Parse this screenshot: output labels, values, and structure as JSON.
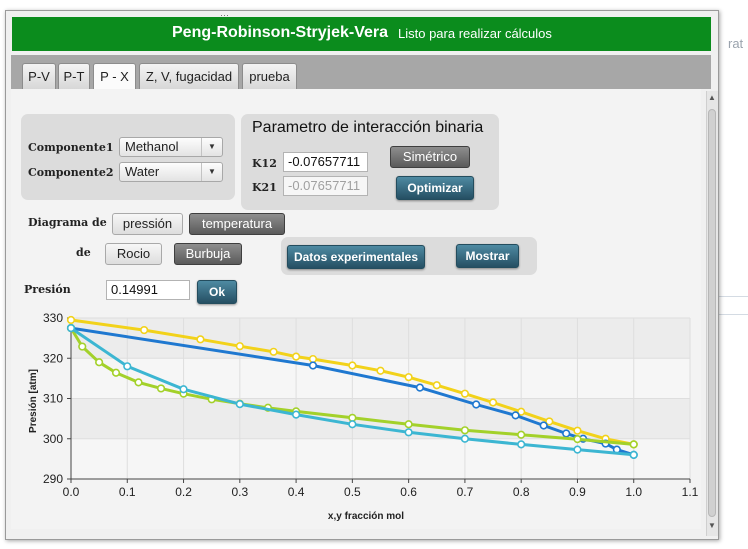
{
  "background": {
    "fragment": "rat"
  },
  "window": {
    "title": "Peng-Robinson-Stryjek-Vera",
    "status": "Listo para realizar cálculos",
    "accent": "#0b8c1d"
  },
  "tabs": [
    {
      "label": "P-V",
      "active": false
    },
    {
      "label": "P-T",
      "active": false
    },
    {
      "label": "P - X",
      "active": true
    },
    {
      "label": "Z, V, fugacidad",
      "active": false
    },
    {
      "label": "prueba",
      "active": false
    }
  ],
  "components": {
    "label1": "Componente1",
    "value1": "Methanol",
    "label2": "Componente2",
    "value2": "Water"
  },
  "binary": {
    "title": "Parametro de interacción binaria",
    "k12_label": "K12",
    "k12_value": "-0.07657711",
    "k21_label": "K21",
    "k21_value": "-0.07657711",
    "symmetric_label": "Simétrico",
    "optimize_label": "Optimizar"
  },
  "diagram": {
    "label_de": "Diagrama de",
    "pressure_label": "pressión",
    "temperature_label": "temperatura",
    "label_de2": "de",
    "dew_label": "Rocio",
    "bubble_label": "Burbuja",
    "experimental_label": "Datos experimentales",
    "show_label": "Mostrar"
  },
  "pressure": {
    "label": "Presión",
    "value": "0.14991",
    "ok_label": "Ok"
  },
  "chart_data": {
    "type": "line",
    "title": "",
    "xlabel": "x,y fracción mol",
    "ylabel": "Presión [atm]",
    "xlim": [
      0.0,
      1.1
    ],
    "ylim": [
      290,
      330
    ],
    "xticks": [
      "0.0",
      "0.1",
      "0.2",
      "0.3",
      "0.4",
      "0.5",
      "0.6",
      "0.7",
      "0.8",
      "0.9",
      "1.0",
      "1.1"
    ],
    "yticks": [
      "290",
      "300",
      "310",
      "320",
      "330"
    ],
    "grid": true,
    "series": [
      {
        "color": "#f2d21a",
        "marker": true,
        "x": [
          0.0,
          0.13,
          0.23,
          0.3,
          0.36,
          0.4,
          0.43,
          0.5,
          0.55,
          0.6,
          0.65,
          0.7,
          0.75,
          0.8,
          0.85,
          0.9,
          0.95,
          1.0
        ],
        "y": [
          329.5,
          327.0,
          324.7,
          323.0,
          321.6,
          320.4,
          319.8,
          318.2,
          316.9,
          315.3,
          313.3,
          311.2,
          309.0,
          306.7,
          304.3,
          302.0,
          300.0,
          298.6
        ]
      },
      {
        "color": "#1f78d0",
        "marker": true,
        "x": [
          0.0,
          0.43,
          0.62,
          0.72,
          0.79,
          0.84,
          0.88,
          0.91,
          0.95,
          0.97,
          1.0
        ],
        "y": [
          327.5,
          318.2,
          312.7,
          308.5,
          305.8,
          303.3,
          301.3,
          300.0,
          298.8,
          297.3,
          296.0
        ]
      },
      {
        "color": "#a3d12a",
        "marker": true,
        "x": [
          0.0,
          0.02,
          0.05,
          0.08,
          0.12,
          0.16,
          0.2,
          0.25,
          0.3,
          0.35,
          0.4,
          0.5,
          0.6,
          0.7,
          0.8,
          0.9,
          1.0
        ],
        "y": [
          327.5,
          322.9,
          319.0,
          316.4,
          314.0,
          312.5,
          311.2,
          309.8,
          308.7,
          307.7,
          306.8,
          305.2,
          303.6,
          302.1,
          301.0,
          299.9,
          298.6
        ]
      },
      {
        "color": "#3cb6d2",
        "marker": true,
        "x": [
          0.0,
          0.1,
          0.2,
          0.3,
          0.4,
          0.5,
          0.6,
          0.7,
          0.8,
          0.9,
          1.0
        ],
        "y": [
          327.5,
          318.0,
          312.3,
          308.6,
          306.0,
          303.6,
          301.6,
          300.0,
          298.6,
          297.3,
          296.0
        ]
      }
    ]
  }
}
